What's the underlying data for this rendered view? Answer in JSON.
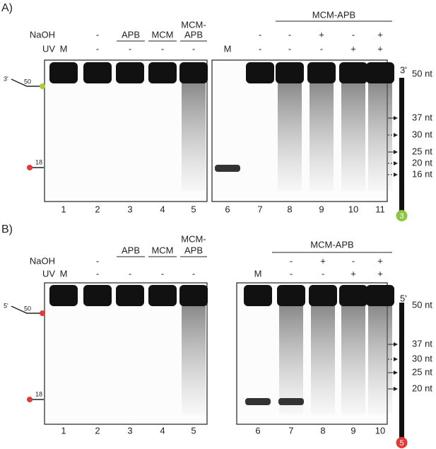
{
  "panels": [
    {
      "label": "A)",
      "group_labels": [
        [
          "APB"
        ],
        [
          "MCM"
        ],
        [
          "MCM-",
          "APB"
        ],
        [
          "MCM-APB"
        ]
      ],
      "row_labels": [
        "NaOH",
        "UV"
      ],
      "naoh": [
        null,
        "-",
        null,
        null,
        null,
        null,
        "-",
        "-",
        "+",
        "-",
        "+"
      ],
      "uv": [
        "M",
        "-",
        "-",
        "-",
        "-",
        "M",
        "-",
        "-",
        "-",
        "+",
        "+"
      ],
      "lanes": [
        1,
        2,
        3,
        4,
        5,
        6,
        7,
        8,
        9,
        10,
        11
      ],
      "substrate": {
        "end": "3'",
        "top": "50",
        "bottom": "18",
        "top_color": "#a6ce39",
        "bottom_color": "#e53935"
      },
      "ladder": {
        "end": "3'",
        "markers": [
          {
            "label": "50 nt",
            "arrow": null
          },
          {
            "label": "37 nt",
            "arrow": "solid"
          },
          {
            "label": "30 nt",
            "arrow": "dashed"
          },
          {
            "label": "25 nt",
            "arrow": "solid"
          },
          {
            "label": "20 nt",
            "arrow": "dashed"
          },
          {
            "label": "16 nt",
            "arrow": "dashed"
          }
        ],
        "ball": "3",
        "ball_color": "#8dc63f"
      }
    },
    {
      "label": "B)",
      "group_labels": [
        [
          "APB"
        ],
        [
          "MCM"
        ],
        [
          "MCM-",
          "APB"
        ],
        [
          "MCM-APB"
        ]
      ],
      "row_labels": [
        "NaOH",
        "UV"
      ],
      "naoh": [
        null,
        "-",
        null,
        null,
        null,
        null,
        "-",
        "+",
        "-",
        "+"
      ],
      "uv": [
        "M",
        "-",
        "-",
        "-",
        "-",
        "M",
        "-",
        "-",
        "+",
        "+"
      ],
      "lanes": [
        1,
        2,
        3,
        4,
        5,
        6,
        7,
        8,
        9,
        10
      ],
      "substrate": {
        "end": "5'",
        "top": "50",
        "bottom": "18",
        "top_color": "#e53935",
        "bottom_color": "#e53935"
      },
      "ladder": {
        "end": "5'",
        "markers": [
          {
            "label": "50 nt",
            "arrow": null
          },
          {
            "label": "37 nt",
            "arrow": "solid"
          },
          {
            "label": "30 nt",
            "arrow": "dashed"
          },
          {
            "label": "25 nt",
            "arrow": "solid"
          },
          {
            "label": "20 nt",
            "arrow": "solid"
          }
        ],
        "ball": "5",
        "ball_color": "#e53935"
      }
    }
  ]
}
